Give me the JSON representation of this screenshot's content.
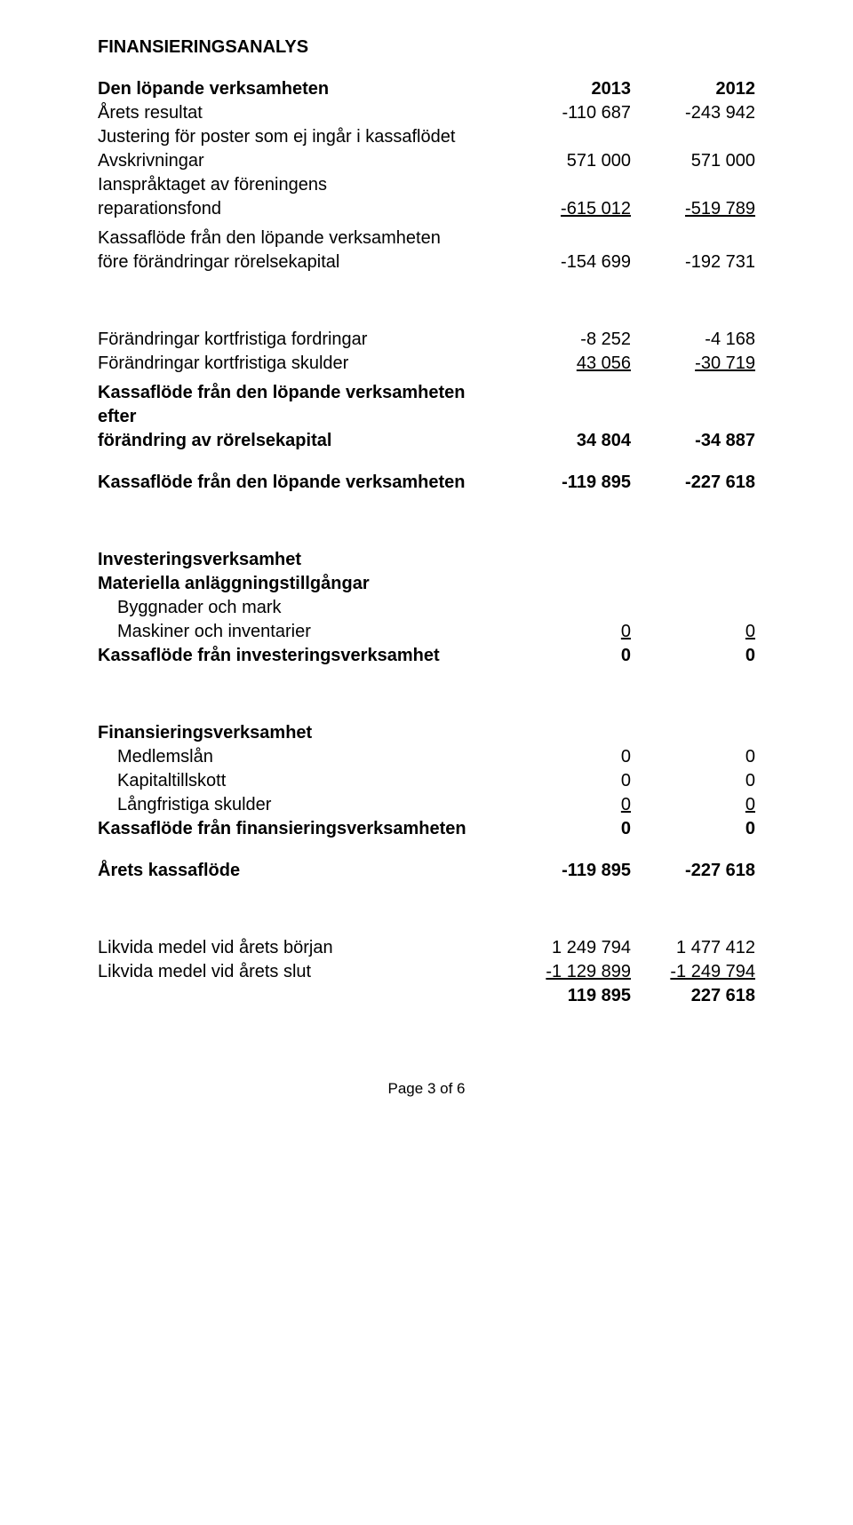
{
  "title": "FINANSIERINGSANALYS",
  "section1": {
    "heading": "Den löpande verksamheten",
    "year1": "2013",
    "year2": "2012",
    "rows": {
      "r1": {
        "label": "Årets resultat",
        "v1": "-110 687",
        "v2": "-243 942"
      },
      "r2": {
        "label": "Justering för poster som ej ingår i kassaflödet"
      },
      "r3": {
        "label": "Avskrivningar",
        "v1": "571 000",
        "v2": "571 000"
      },
      "r4a": {
        "label": "Ianspråktaget av föreningens"
      },
      "r4b": {
        "label": "reparationsfond",
        "v1": "-615 012",
        "v2": "-519 789"
      },
      "r5a": {
        "label": "Kassaflöde från den löpande verksamheten"
      },
      "r5b": {
        "label": "före förändringar rörelsekapital",
        "v1": "-154 699",
        "v2": "-192 731"
      }
    }
  },
  "section2": {
    "r1": {
      "label": "Förändringar kortfristiga fordringar",
      "v1": "-8 252",
      "v2": "-4 168"
    },
    "r2": {
      "label": "Förändringar kortfristiga skulder",
      "v1": "43 056",
      "v2": "-30 719"
    },
    "r3a": {
      "label": "Kassaflöde från den löpande verksamheten efter"
    },
    "r3b": {
      "label": "förändring av rörelsekapital",
      "v1": "34 804",
      "v2": "-34 887"
    },
    "r4": {
      "label": "Kassaflöde från den löpande verksamheten",
      "v1": "-119 895",
      "v2": "-227 618"
    }
  },
  "section3": {
    "heading": "Investeringsverksamhet",
    "sub": "Materiella anläggningstillgångar",
    "r1": {
      "label": "Byggnader och mark"
    },
    "r2": {
      "label": "Maskiner och inventarier",
      "v1": "0",
      "v2": "0"
    },
    "r3": {
      "label": "Kassaflöde från investeringsverksamhet",
      "v1": "0",
      "v2": "0"
    }
  },
  "section4": {
    "heading": "Finansieringsverksamhet",
    "r1": {
      "label": "Medlemslån",
      "v1": "0",
      "v2": "0"
    },
    "r2": {
      "label": "Kapitaltillskott",
      "v1": "0",
      "v2": "0"
    },
    "r3": {
      "label": "Långfristiga skulder",
      "v1": "0",
      "v2": "0"
    },
    "r4": {
      "label": "Kassaflöde från finansieringsverksamheten",
      "v1": "0",
      "v2": "0"
    },
    "r5": {
      "label": "Årets kassaflöde",
      "v1": "-119 895",
      "v2": "-227 618"
    }
  },
  "section5": {
    "r1": {
      "label": "Likvida medel vid årets början",
      "v1": "1 249 794",
      "v2": "1 477 412"
    },
    "r2": {
      "label": "Likvida medel vid årets slut",
      "v1": "-1 129 899",
      "v2": "-1 249 794"
    },
    "r3": {
      "v1": "119 895",
      "v2": "227 618"
    }
  },
  "footer": "Page 3 of 6"
}
